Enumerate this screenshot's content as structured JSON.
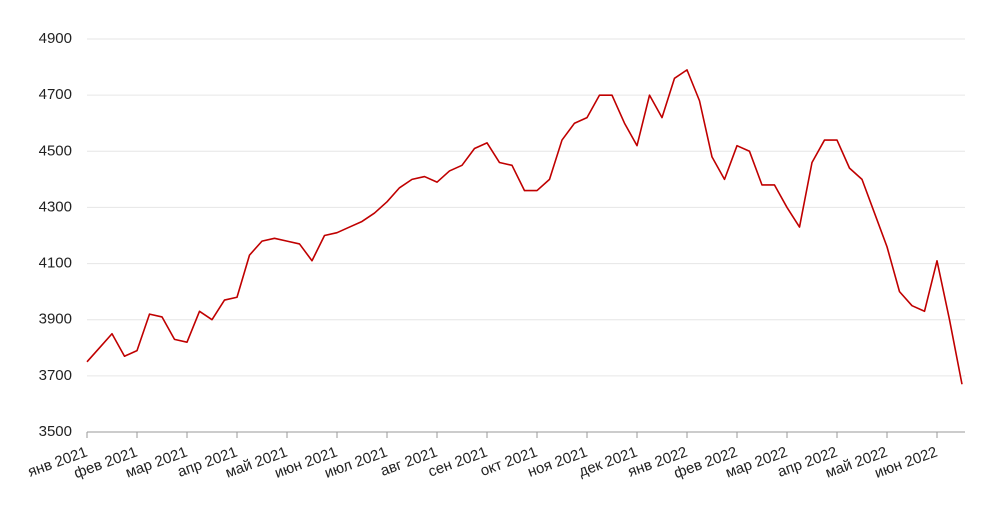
{
  "chart_data": {
    "type": "line",
    "categories": [
      "янв 2021",
      null,
      null,
      null,
      "фев 2021",
      null,
      null,
      null,
      "мар 2021",
      null,
      null,
      null,
      "апр 2021",
      null,
      null,
      null,
      "май 2021",
      null,
      null,
      null,
      "июн 2021",
      null,
      null,
      null,
      "июл 2021",
      null,
      null,
      null,
      "авг 2021",
      null,
      null,
      null,
      "сен 2021",
      null,
      null,
      null,
      "окт 2021",
      null,
      null,
      null,
      "ноя 2021",
      null,
      null,
      null,
      "дек 2021",
      null,
      null,
      null,
      "янв 2022",
      null,
      null,
      null,
      "фев 2022",
      null,
      null,
      null,
      "мар 2022",
      null,
      null,
      null,
      "апр 2022",
      null,
      null,
      null,
      "май 2022",
      null,
      null,
      null,
      "июн 2022",
      null,
      null
    ],
    "values": [
      3750,
      3800,
      3850,
      3770,
      3790,
      3920,
      3910,
      3830,
      3820,
      3930,
      3900,
      3970,
      3980,
      4130,
      4180,
      4190,
      4180,
      4170,
      4110,
      4200,
      4210,
      4230,
      4250,
      4280,
      4320,
      4370,
      4400,
      4410,
      4390,
      4430,
      4450,
      4510,
      4530,
      4460,
      4450,
      4360,
      4360,
      4400,
      4540,
      4600,
      4620,
      4700,
      4700,
      4600,
      4520,
      4700,
      4620,
      4760,
      4790,
      4680,
      4480,
      4400,
      4520,
      4500,
      4380,
      4380,
      4300,
      4230,
      4460,
      4540,
      4540,
      4440,
      4400,
      4280,
      4160,
      4000,
      3950,
      3930,
      4110,
      3900,
      3670
    ],
    "color": "#c00000",
    "ylim": [
      3500,
      4900
    ],
    "yticks": [
      3500,
      3700,
      3900,
      4100,
      4300,
      4500,
      4700,
      4900
    ],
    "grid": true
  }
}
